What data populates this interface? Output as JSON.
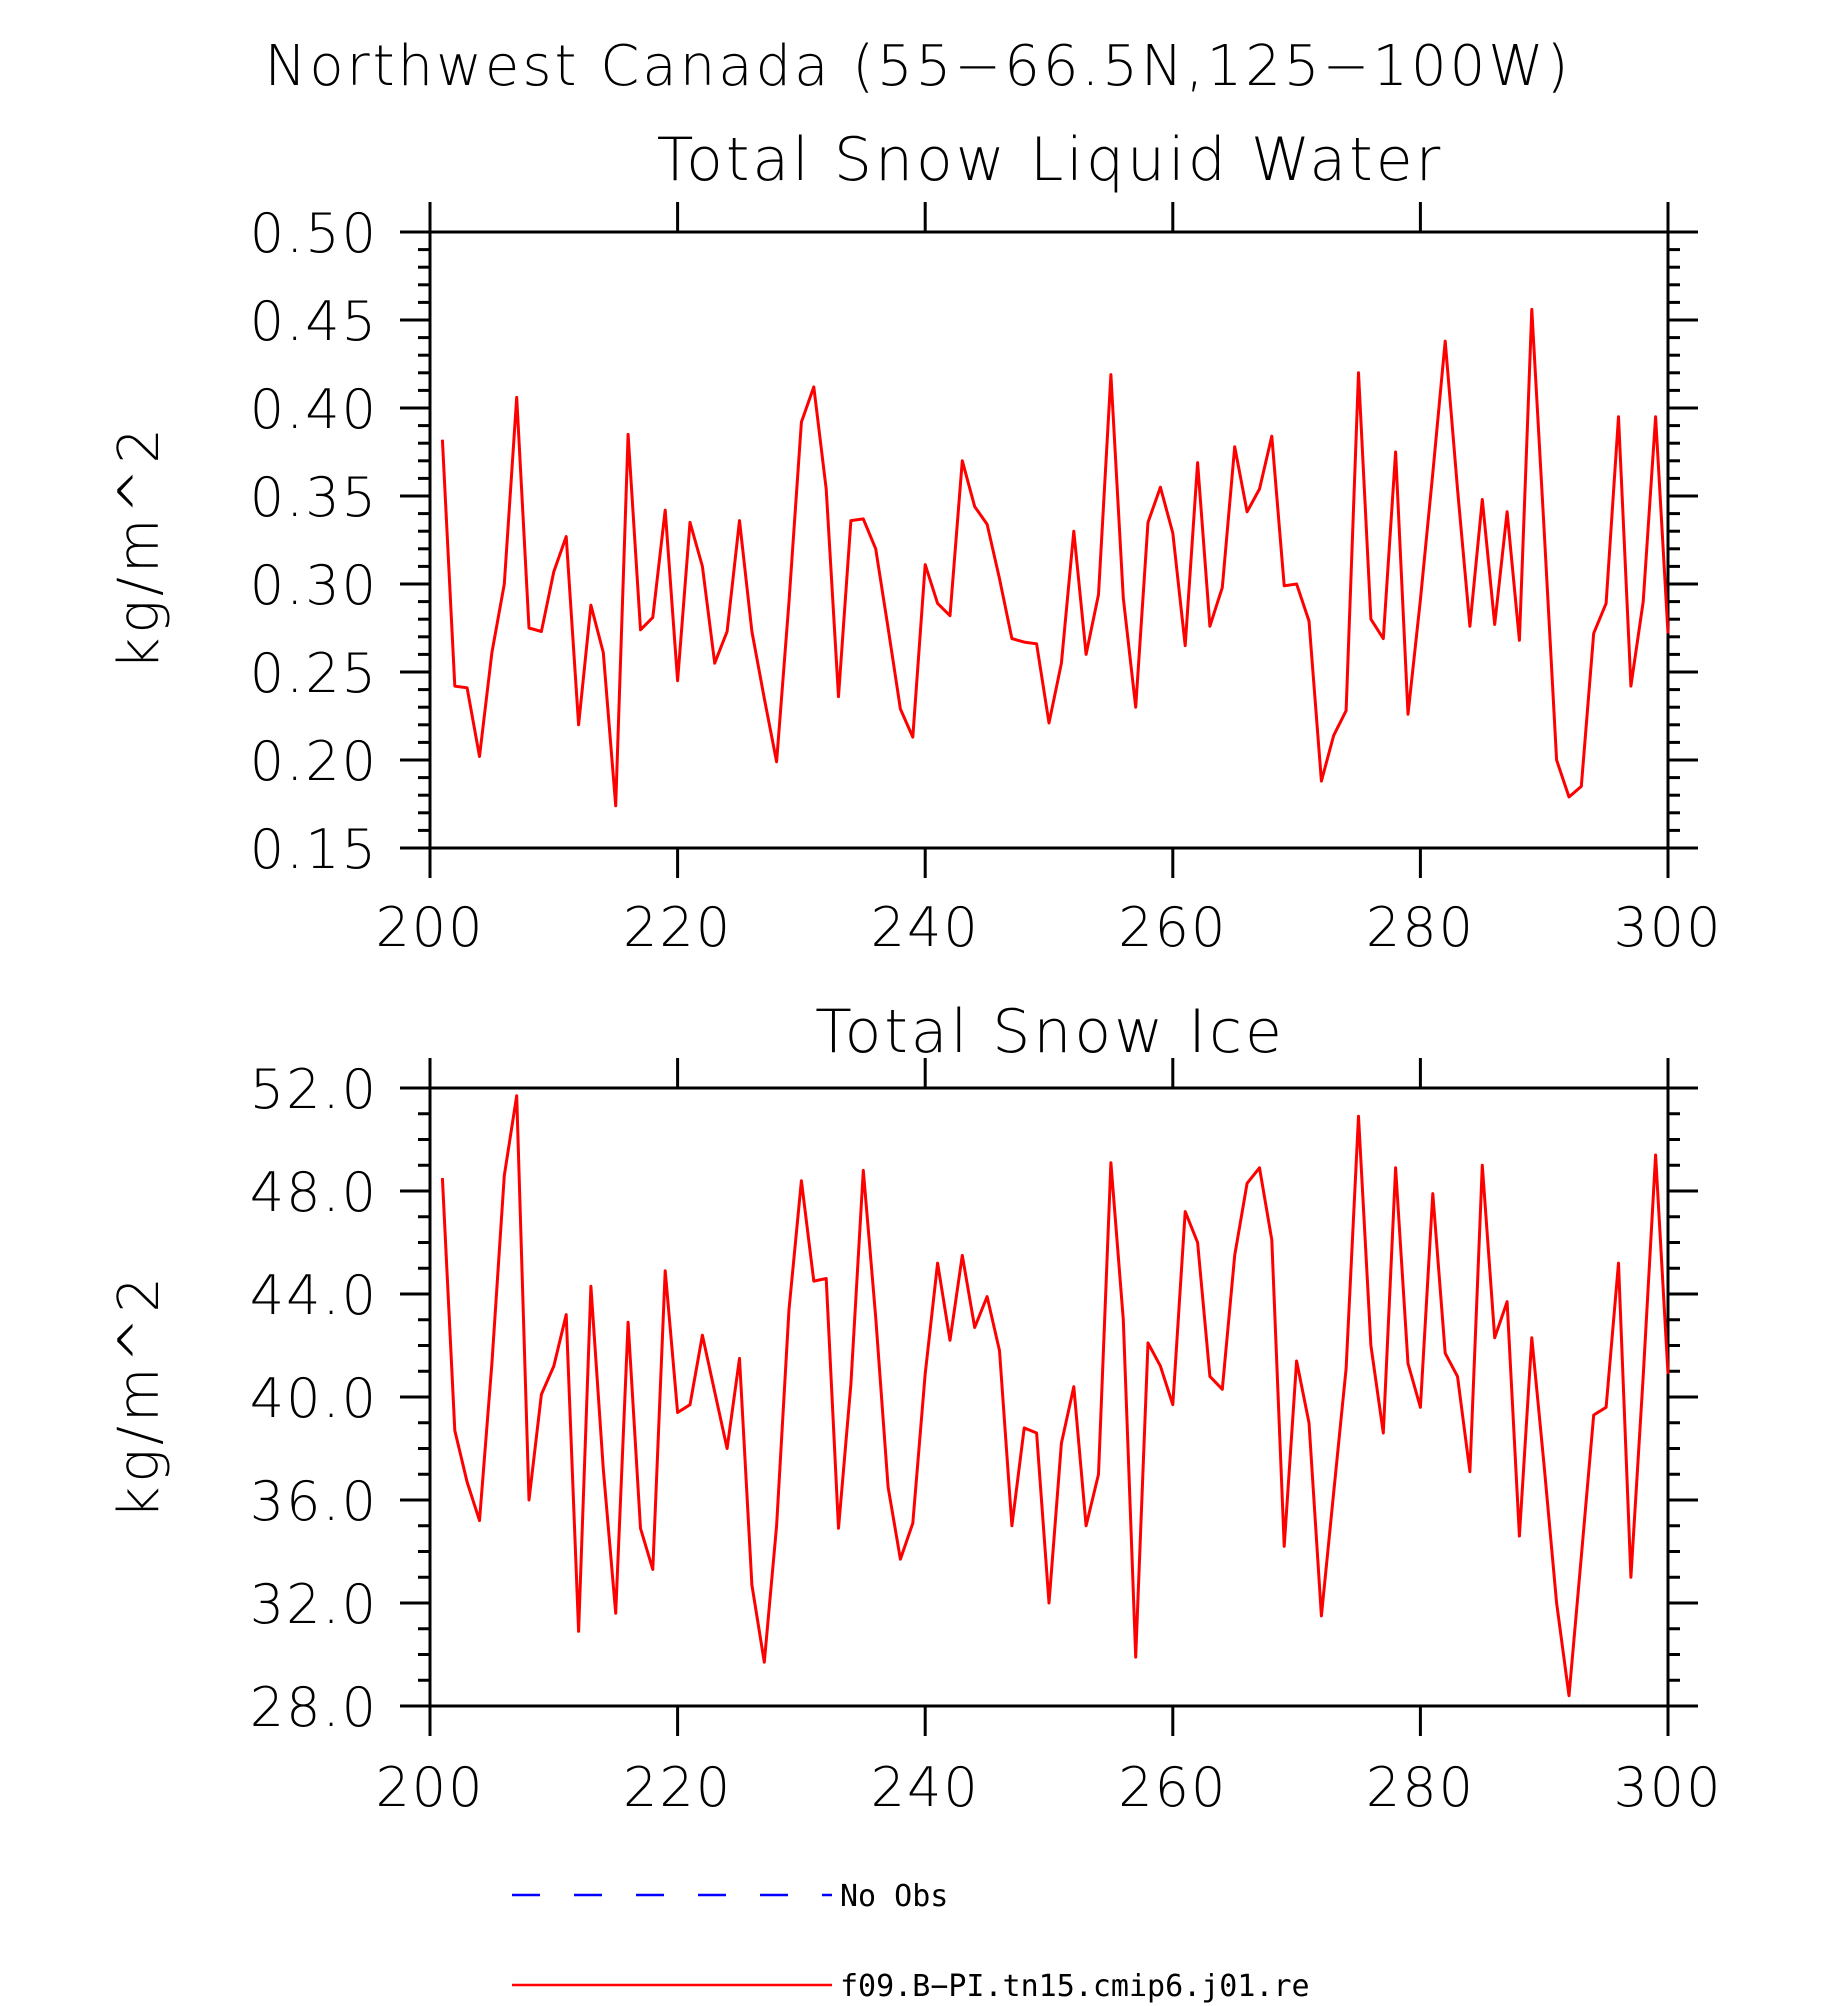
{
  "figure_title": "Northwest Canada (55−66.5N,125−100W)",
  "colors": {
    "model_series": "#ff0000",
    "obs_series": "#0000ff",
    "axes": "#000000"
  },
  "legend": {
    "entries": [
      {
        "label": "No Obs",
        "style": "dashed",
        "color": "#0000ff"
      },
      {
        "label": "f09.B−PI.tn15.cmip6.j01.re",
        "style": "solid",
        "color": "#ff0000"
      }
    ]
  },
  "chart_data": [
    {
      "type": "line",
      "title": "Total Snow Liquid Water",
      "xlabel": "",
      "ylabel": "kg/m^2",
      "xlim": [
        200,
        300
      ],
      "ylim": [
        0.15,
        0.5
      ],
      "x_ticks": [
        200,
        220,
        240,
        260,
        280,
        300
      ],
      "x_tick_labels": [
        "200",
        "220",
        "240",
        "260",
        "280",
        "300"
      ],
      "y_ticks": [
        0.15,
        0.2,
        0.25,
        0.3,
        0.35,
        0.4,
        0.45,
        0.5
      ],
      "y_tick_labels": [
        "0.15",
        "0.20",
        "0.25",
        "0.30",
        "0.35",
        "0.40",
        "0.45",
        "0.50"
      ],
      "y_minor_step": 0.01,
      "x_minor_step": 1,
      "grid": false,
      "series": [
        {
          "name": "f09.B−PI.tn15.cmip6.j01.re",
          "x": [
            201,
            202,
            203,
            204,
            205,
            206,
            207,
            208,
            209,
            210,
            211,
            212,
            213,
            214,
            215,
            216,
            217,
            218,
            219,
            220,
            221,
            222,
            223,
            224,
            225,
            226,
            227,
            228,
            229,
            230,
            231,
            232,
            233,
            234,
            235,
            236,
            237,
            238,
            239,
            240,
            241,
            242,
            243,
            244,
            245,
            246,
            247,
            248,
            249,
            250,
            251,
            252,
            253,
            254,
            255,
            256,
            257,
            258,
            259,
            260,
            261,
            262,
            263,
            264,
            265,
            266,
            267,
            268,
            269,
            270,
            271,
            272,
            273,
            274,
            275,
            276,
            277,
            278,
            279,
            280,
            281,
            282,
            283,
            284,
            285,
            286,
            287,
            288,
            289,
            290,
            291,
            292,
            293,
            294,
            295,
            296,
            297,
            298,
            299,
            300
          ],
          "values": [
            0.382,
            0.242,
            0.241,
            0.202,
            0.261,
            0.3,
            0.406,
            0.275,
            0.273,
            0.307,
            0.327,
            0.22,
            0.288,
            0.261,
            0.174,
            0.385,
            0.274,
            0.281,
            0.342,
            0.245,
            0.335,
            0.31,
            0.255,
            0.273,
            0.336,
            0.273,
            0.235,
            0.199,
            0.29,
            0.392,
            0.412,
            0.354,
            0.236,
            0.336,
            0.337,
            0.32,
            0.275,
            0.229,
            0.213,
            0.311,
            0.289,
            0.282,
            0.37,
            0.344,
            0.334,
            0.303,
            0.269,
            0.267,
            0.266,
            0.221,
            0.255,
            0.33,
            0.26,
            0.294,
            0.419,
            0.292,
            0.23,
            0.335,
            0.355,
            0.329,
            0.265,
            0.369,
            0.276,
            0.298,
            0.378,
            0.341,
            0.354,
            0.384,
            0.299,
            0.3,
            0.279,
            0.188,
            0.214,
            0.228,
            0.42,
            0.28,
            0.269,
            0.375,
            0.226,
            0.291,
            0.363,
            0.438,
            0.354,
            0.276,
            0.348,
            0.277,
            0.341,
            0.268,
            0.456,
            0.33,
            0.2,
            0.179,
            0.185,
            0.272,
            0.289,
            0.395,
            0.242,
            0.29,
            0.395,
            0.272
          ]
        }
      ]
    },
    {
      "type": "line",
      "title": "Total Snow Ice",
      "xlabel": "",
      "ylabel": "kg/m^2",
      "xlim": [
        200,
        300
      ],
      "ylim": [
        28.0,
        52.0
      ],
      "x_ticks": [
        200,
        220,
        240,
        260,
        280,
        300
      ],
      "x_tick_labels": [
        "200",
        "220",
        "240",
        "260",
        "280",
        "300"
      ],
      "y_ticks": [
        28.0,
        32.0,
        36.0,
        40.0,
        44.0,
        48.0,
        52.0
      ],
      "y_tick_labels": [
        "28.0",
        "32.0",
        "36.0",
        "40.0",
        "44.0",
        "48.0",
        "52.0"
      ],
      "y_minor_step": 1,
      "x_minor_step": 1,
      "grid": false,
      "series": [
        {
          "name": "f09.B−PI.tn15.cmip6.j01.re",
          "x": [
            201,
            202,
            203,
            204,
            205,
            206,
            207,
            208,
            209,
            210,
            211,
            212,
            213,
            214,
            215,
            216,
            217,
            218,
            219,
            220,
            221,
            222,
            223,
            224,
            225,
            226,
            227,
            228,
            229,
            230,
            231,
            232,
            233,
            234,
            235,
            236,
            237,
            238,
            239,
            240,
            241,
            242,
            243,
            244,
            245,
            246,
            247,
            248,
            249,
            250,
            251,
            252,
            253,
            254,
            255,
            256,
            257,
            258,
            259,
            260,
            261,
            262,
            263,
            264,
            265,
            266,
            267,
            268,
            269,
            270,
            271,
            272,
            273,
            274,
            275,
            276,
            277,
            278,
            279,
            280,
            281,
            282,
            283,
            284,
            285,
            286,
            287,
            288,
            289,
            290,
            291,
            292,
            293,
            294,
            295,
            296,
            297,
            298,
            299,
            300
          ],
          "values": [
            48.5,
            38.7,
            36.7,
            35.2,
            41.3,
            48.6,
            51.7,
            36.0,
            40.1,
            41.2,
            43.2,
            30.9,
            44.3,
            37.2,
            31.6,
            42.9,
            34.9,
            33.3,
            44.9,
            39.4,
            39.7,
            42.4,
            40.2,
            38.0,
            41.5,
            32.7,
            29.7,
            35.0,
            43.4,
            48.4,
            44.5,
            44.6,
            34.9,
            40.5,
            48.8,
            43.1,
            36.5,
            33.7,
            35.1,
            40.9,
            45.2,
            42.2,
            45.5,
            42.7,
            43.9,
            41.8,
            35.0,
            38.8,
            38.6,
            32.0,
            38.2,
            40.4,
            35.0,
            37.0,
            49.1,
            43.0,
            29.9,
            42.1,
            41.2,
            39.7,
            47.2,
            46.0,
            40.8,
            40.3,
            45.5,
            48.3,
            48.9,
            46.1,
            34.2,
            41.4,
            39.0,
            31.5,
            36.3,
            41.1,
            50.9,
            42.0,
            38.6,
            48.9,
            41.3,
            39.6,
            47.9,
            41.7,
            40.8,
            37.1,
            49.0,
            42.3,
            43.7,
            34.6,
            42.3,
            37.3,
            32.0,
            28.4,
            33.8,
            39.3,
            39.6,
            45.2,
            33.0,
            40.8,
            49.4,
            40.9
          ]
        }
      ]
    }
  ]
}
